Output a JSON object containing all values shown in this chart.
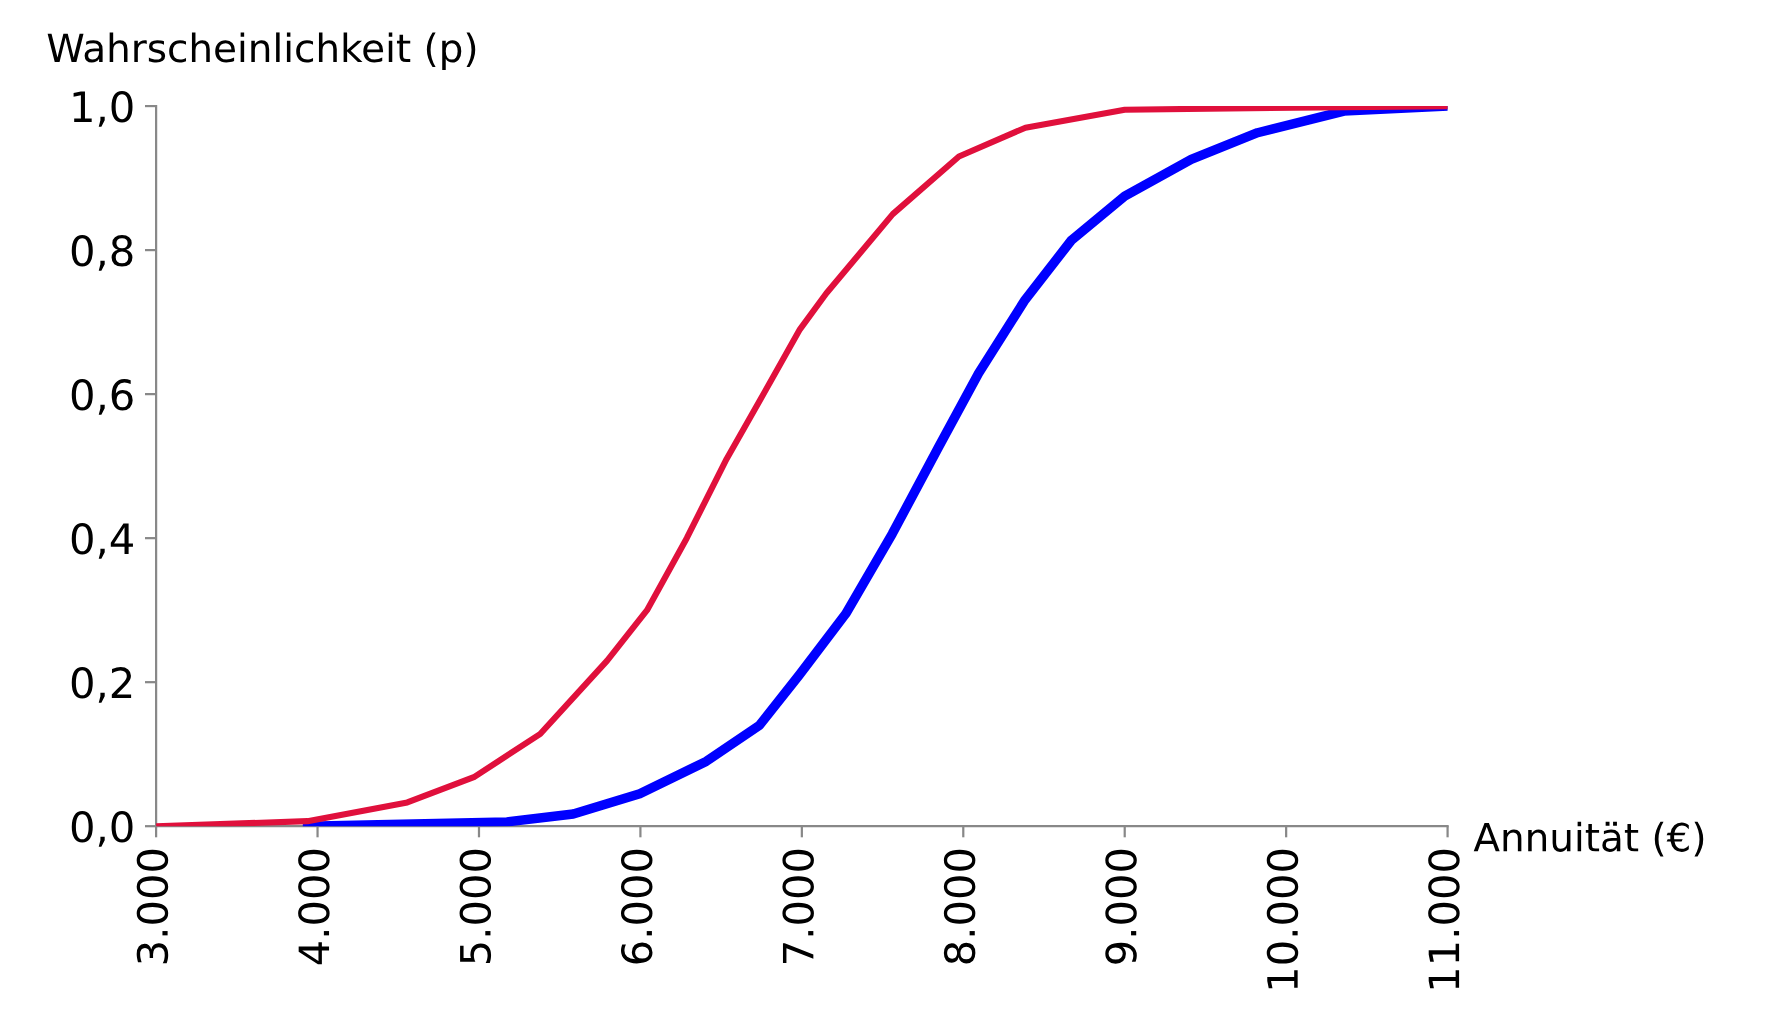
{
  "chart_data": {
    "type": "line",
    "xlabel": "Annuität (€)",
    "ylabel": "Wahrscheinlichkeit (p)",
    "series": [
      {
        "color": "#e0103c",
        "x": [
          3000,
          3938,
          4556,
          4968,
          5379,
          5794,
          6041,
          6287,
          6534,
          6737,
          6988,
          7152,
          7563,
          7973,
          8385,
          9000,
          11000
        ],
        "values": [
          0,
          0.007,
          0.033,
          0.068,
          0.128,
          0.23,
          0.3,
          0.4,
          0.51,
          0.59,
          0.69,
          0.74,
          0.85,
          0.93,
          0.97,
          0.995,
          1.0
        ]
      },
      {
        "color": "#0000ff",
        "x": [
          3938,
          5173,
          5584,
          5996,
          6407,
          6737,
          6984,
          7272,
          7560,
          7848,
          8095,
          8383,
          8671,
          9000,
          9412,
          9823,
          10358,
          11000
        ],
        "values": [
          0,
          0.006,
          0.017,
          0.045,
          0.09,
          0.14,
          0.21,
          0.295,
          0.406,
          0.527,
          0.629,
          0.731,
          0.814,
          0.875,
          0.926,
          0.963,
          0.993,
          1.0
        ]
      }
    ],
    "xlim": [
      3000,
      11000
    ],
    "ylim": [
      0,
      1.0
    ],
    "xticks": [
      {
        "value": 3000,
        "label": "3.000"
      },
      {
        "value": 4000,
        "label": "4.000"
      },
      {
        "value": 5000,
        "label": "5.000"
      },
      {
        "value": 6000,
        "label": "6.000"
      },
      {
        "value": 7000,
        "label": "7.000"
      },
      {
        "value": 8000,
        "label": "8.000"
      },
      {
        "value": 9000,
        "label": "9.000"
      },
      {
        "value": 10000,
        "label": "10.000"
      },
      {
        "value": 11000,
        "label": "11.000"
      }
    ],
    "yticks": [
      {
        "value": 0,
        "label": "0,0"
      },
      {
        "value": 0.2,
        "label": "0,2"
      },
      {
        "value": 0.4,
        "label": "0,4"
      },
      {
        "value": 0.6,
        "label": "0,6"
      },
      {
        "value": 0.8,
        "label": "0,8"
      },
      {
        "value": 1.0,
        "label": "1,0"
      }
    ],
    "grid": false,
    "legend": false
  }
}
